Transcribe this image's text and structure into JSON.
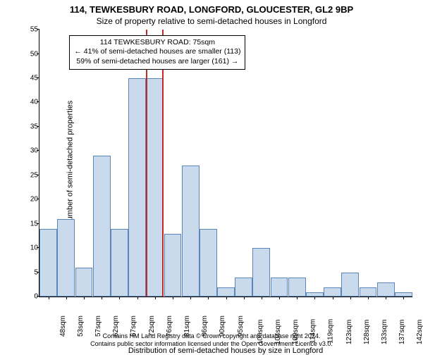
{
  "title_main": "114, TEWKESBURY ROAD, LONGFORD, GLOUCESTER, GL2 9BP",
  "title_sub": "Size of property relative to semi-detached houses in Longford",
  "ylabel": "Number of semi-detached properties",
  "xlabel": "Distribution of semi-detached houses by size in Longford",
  "footnote_line1": "Contains HM Land Registry data © Crown copyright and database right 2024.",
  "footnote_line2": "Contains public sector information licensed under the Open Government Licence v3.0.",
  "annotation": {
    "line1": "114 TEWKESBURY ROAD: 75sqm",
    "line2": "← 41% of semi-detached houses are smaller (113)",
    "line3": "59% of semi-detached houses are larger (161) →"
  },
  "chart": {
    "type": "bar",
    "ymax": 55,
    "yticks": [
      0,
      5,
      10,
      15,
      20,
      25,
      30,
      35,
      40,
      45,
      50,
      55
    ],
    "xcategories": [
      "48sqm",
      "53sqm",
      "57sqm",
      "62sqm",
      "67sqm",
      "72sqm",
      "76sqm",
      "81sqm",
      "86sqm",
      "90sqm",
      "95sqm",
      "100sqm",
      "104sqm",
      "109sqm",
      "114sqm",
      "119sqm",
      "123sqm",
      "128sqm",
      "133sqm",
      "137sqm",
      "142sqm"
    ],
    "values": [
      14,
      16,
      6,
      29,
      14,
      45,
      45,
      13,
      27,
      14,
      2,
      4,
      10,
      4,
      4,
      1,
      2,
      5,
      2,
      3,
      1
    ],
    "bar_color": "#c8daec",
    "bar_border": "#5b86ba",
    "highlight_border": "#c62828",
    "highlight_index": 6,
    "background_color": "#ffffff",
    "axis_color": "#000000",
    "tick_fontsize": 10,
    "label_fontsize": 11,
    "title_fontsize": 13
  }
}
